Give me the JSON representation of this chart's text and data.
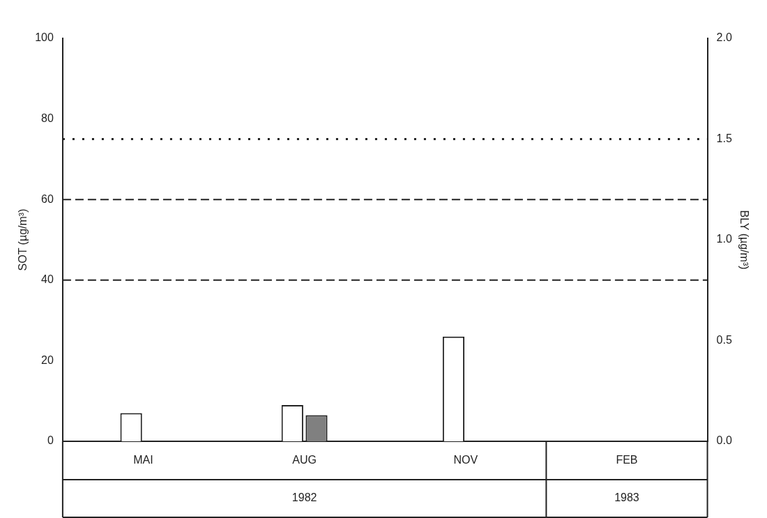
{
  "chart_data": {
    "type": "bar",
    "categories": [
      "MAI",
      "AUG",
      "NOV",
      "FEB"
    ],
    "ylabel": "SOT (µg/m³)",
    "y2label": "BLY (µg/m³)",
    "series": [
      {
        "color": "#ffffff",
        "values": [
          7,
          9,
          26,
          null
        ]
      },
      {
        "color": "#808080",
        "axis": "y2",
        "values": [
          null,
          0.13,
          null,
          null
        ]
      }
    ],
    "ylim": [
      0,
      100
    ],
    "yticks": [
      0,
      20,
      40,
      60,
      80,
      100
    ],
    "y2lim": [
      0,
      2
    ],
    "y2ticks": [
      {
        "value": 0,
        "label": "0.0"
      },
      0.5,
      {
        "value": 1,
        "label": "1.0"
      },
      1.5,
      {
        "value": 2,
        "label": "2.0"
      }
    ],
    "ref_lines": [
      {
        "axis": "y",
        "value": 40,
        "line_style": "dashed"
      },
      {
        "axis": "y",
        "value": 60,
        "line_style": "dashed"
      },
      {
        "axis": "y2",
        "value": 1.5,
        "line_style": "dotted"
      }
    ],
    "annotations": [
      "1982",
      "1983"
    ],
    "grid": false,
    "legend": false
  }
}
